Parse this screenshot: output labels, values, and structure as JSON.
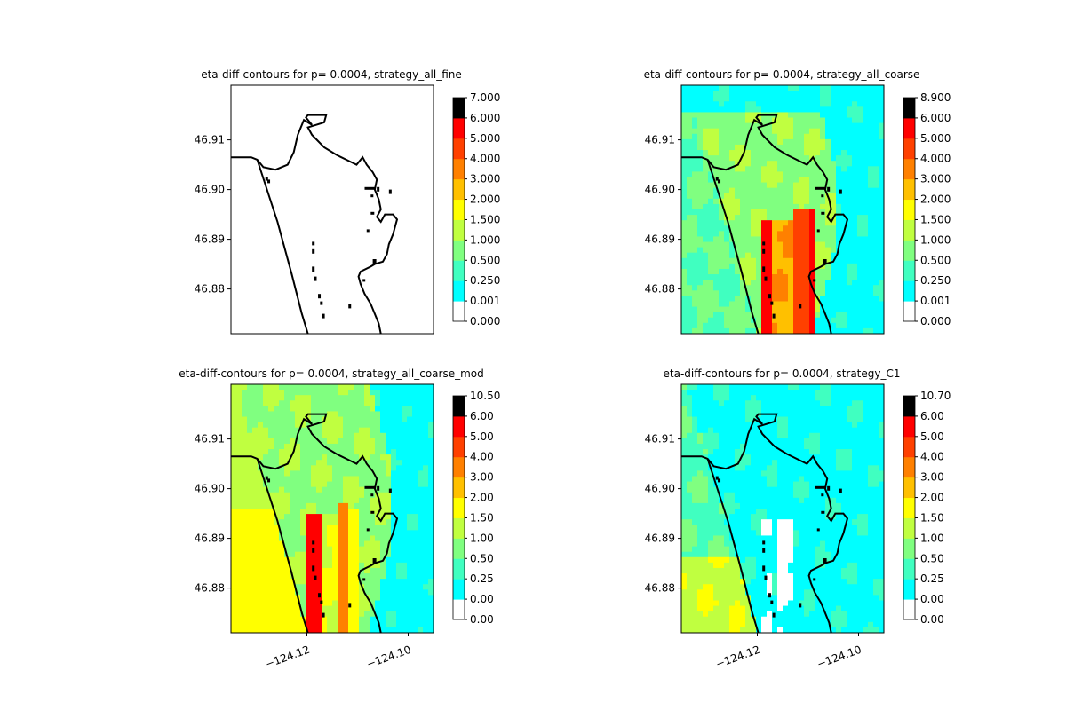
{
  "figure": {
    "layout": "2x2 grid of contour panels",
    "colorbar_colors": [
      "#ffffff",
      "#00ffff",
      "#40ffc0",
      "#80ff80",
      "#c0ff40",
      "#ffff00",
      "#ffc000",
      "#ff8000",
      "#ff4000",
      "#ff0000"
    ],
    "coast_color": "#000000"
  },
  "chart_data": [
    {
      "type": "heatmap",
      "title": "eta-diff-contours for p= 0.0004, strategy_all_fine",
      "yticks": [
        "46.91",
        "46.90",
        "46.89",
        "46.88"
      ],
      "ytick_values": [
        46.91,
        46.9,
        46.89,
        46.88
      ],
      "xticks": [],
      "xlim": [
        -124.135,
        -124.095
      ],
      "ylim": [
        46.871,
        46.921
      ],
      "colorbar_levels": [
        "0.000",
        "0.001",
        "0.250",
        "0.500",
        "1.000",
        "1.500",
        "2.000",
        "3.000",
        "4.000",
        "5.000",
        "6.000",
        "7.000"
      ],
      "field": "none"
    },
    {
      "type": "heatmap",
      "title": "eta-diff-contours for p= 0.0004, strategy_all_coarse",
      "yticks": [
        "46.91",
        "46.90",
        "46.89",
        "46.88"
      ],
      "ytick_values": [
        46.91,
        46.9,
        46.89,
        46.88
      ],
      "xticks": [],
      "xlim": [
        -124.135,
        -124.095
      ],
      "ylim": [
        46.871,
        46.921
      ],
      "colorbar_levels": [
        "0.000",
        "0.001",
        "0.250",
        "0.500",
        "1.000",
        "1.500",
        "2.000",
        "3.000",
        "4.000",
        "5.000",
        "6.000",
        "8.900"
      ],
      "field": "coarse"
    },
    {
      "type": "heatmap",
      "title": "eta-diff-contours for p= 0.0004, strategy_all_coarse_mod",
      "yticks": [
        "46.91",
        "46.90",
        "46.89",
        "46.88"
      ],
      "ytick_values": [
        46.91,
        46.9,
        46.89,
        46.88
      ],
      "xticks": [
        "−124.12",
        "−124.10"
      ],
      "xtick_values": [
        -124.12,
        -124.1
      ],
      "xlim": [
        -124.135,
        -124.095
      ],
      "ylim": [
        46.871,
        46.921
      ],
      "colorbar_levels": [
        "0.00",
        "0.00",
        "0.25",
        "0.50",
        "1.00",
        "1.50",
        "2.00",
        "3.00",
        "4.00",
        "5.00",
        "6.00",
        "10.50"
      ],
      "field": "coarse_mod"
    },
    {
      "type": "heatmap",
      "title": "eta-diff-contours for p= 0.0004, strategy_C1",
      "yticks": [
        "46.91",
        "46.90",
        "46.89",
        "46.88"
      ],
      "ytick_values": [
        46.91,
        46.9,
        46.89,
        46.88
      ],
      "xticks": [
        "−124.12",
        "−124.10"
      ],
      "xtick_values": [
        -124.12,
        -124.1
      ],
      "xlim": [
        -124.135,
        -124.095
      ],
      "ylim": [
        46.871,
        46.921
      ],
      "colorbar_levels": [
        "0.00",
        "0.00",
        "0.25",
        "0.50",
        "1.00",
        "1.50",
        "2.00",
        "3.00",
        "4.00",
        "5.00",
        "6.00",
        "10.70"
      ],
      "field": "c1"
    }
  ]
}
